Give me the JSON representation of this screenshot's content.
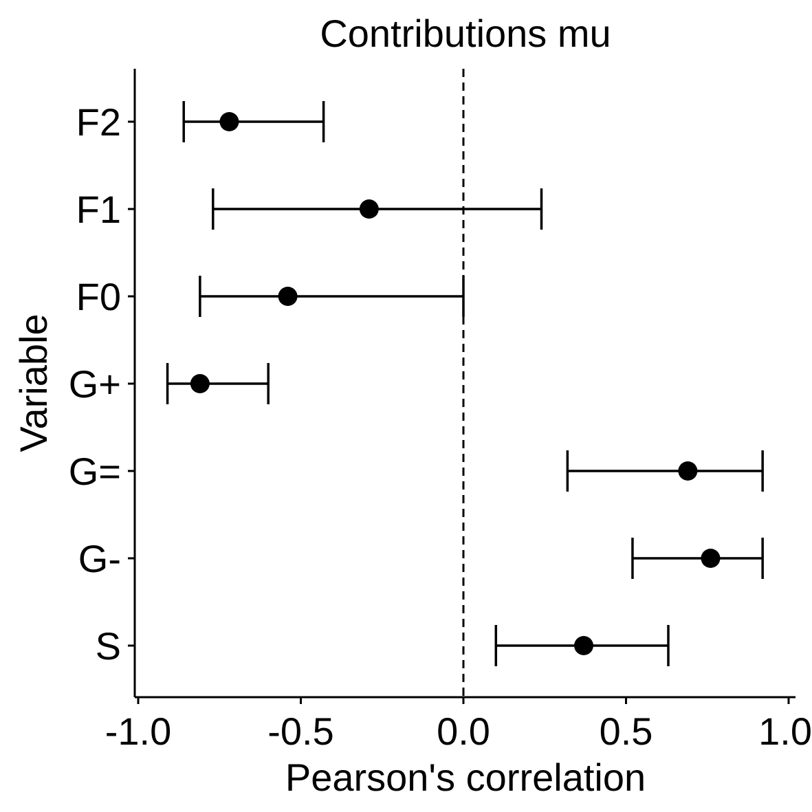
{
  "chart_data": {
    "type": "errorbar",
    "title": "Contributions mu",
    "xlabel": "Pearson's correlation",
    "ylabel": "Variable",
    "xlim": [
      -1.0,
      1.0
    ],
    "xticks": [
      "-1.0",
      "-0.5",
      "0.0",
      "0.5",
      "1.0"
    ],
    "xtick_values": [
      -1.0,
      -0.5,
      0.0,
      0.5,
      1.0
    ],
    "reference_line": 0.0,
    "categories": [
      "F2",
      "F1",
      "F0",
      "G+",
      "G=",
      "G-",
      "S"
    ],
    "estimates": [
      -0.72,
      -0.29,
      -0.54,
      -0.81,
      0.69,
      0.76,
      0.37
    ],
    "lower": [
      -0.86,
      -0.77,
      -0.81,
      -0.91,
      0.32,
      0.52,
      0.1
    ],
    "upper": [
      -0.43,
      0.24,
      0.0,
      -0.6,
      0.92,
      0.92,
      0.63
    ],
    "grid": false,
    "colors": {
      "points": "#000000",
      "lines": "#000000"
    }
  }
}
